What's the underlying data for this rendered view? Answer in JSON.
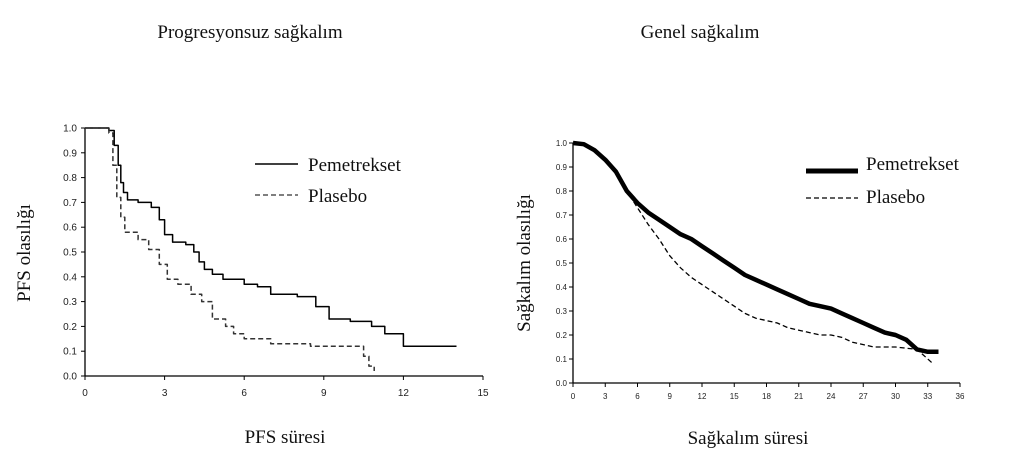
{
  "chart_data": [
    {
      "type": "line",
      "title": "Progresyonsuz sağkalım",
      "xlabel": "PFS süresi",
      "ylabel": "PFS olasılığı",
      "xlim": [
        0,
        15
      ],
      "ylim": [
        0,
        1
      ],
      "x_ticks": [
        "0",
        "3",
        "6",
        "9",
        "12",
        "15"
      ],
      "y_ticks": [
        "0.0",
        "0.1",
        "0.2",
        "0.3",
        "0.4",
        "0.5",
        "0.6",
        "0.7",
        "0.8",
        "0.9",
        "1.0"
      ],
      "x_tick_values": [
        0,
        3,
        6,
        9,
        12,
        15
      ],
      "y_tick_values": [
        0,
        0.1,
        0.2,
        0.3,
        0.4,
        0.5,
        0.6,
        0.7,
        0.8,
        0.9,
        1.0
      ],
      "grid": false,
      "legend_position": "top-right",
      "step": true,
      "series": [
        {
          "name": "Pemetrekset",
          "style": "solid",
          "points": [
            [
              0,
              1.0
            ],
            [
              0.9,
              0.99
            ],
            [
              1.1,
              0.93
            ],
            [
              1.25,
              0.85
            ],
            [
              1.35,
              0.78
            ],
            [
              1.45,
              0.74
            ],
            [
              1.6,
              0.71
            ],
            [
              2.0,
              0.7
            ],
            [
              2.5,
              0.68
            ],
            [
              2.8,
              0.63
            ],
            [
              3.0,
              0.57
            ],
            [
              3.3,
              0.54
            ],
            [
              3.8,
              0.53
            ],
            [
              4.1,
              0.5
            ],
            [
              4.3,
              0.46
            ],
            [
              4.5,
              0.43
            ],
            [
              4.8,
              0.41
            ],
            [
              5.2,
              0.39
            ],
            [
              6.0,
              0.37
            ],
            [
              6.5,
              0.36
            ],
            [
              7.0,
              0.33
            ],
            [
              8.0,
              0.32
            ],
            [
              8.7,
              0.28
            ],
            [
              9.2,
              0.23
            ],
            [
              10.0,
              0.22
            ],
            [
              10.8,
              0.2
            ],
            [
              11.3,
              0.17
            ],
            [
              12.0,
              0.12
            ],
            [
              14.0,
              0.12
            ]
          ]
        },
        {
          "name": "Plasebo",
          "style": "dashed",
          "points": [
            [
              0,
              1.0
            ],
            [
              0.9,
              0.98
            ],
            [
              1.05,
              0.85
            ],
            [
              1.2,
              0.72
            ],
            [
              1.35,
              0.64
            ],
            [
              1.5,
              0.58
            ],
            [
              2.0,
              0.55
            ],
            [
              2.4,
              0.51
            ],
            [
              2.8,
              0.45
            ],
            [
              3.1,
              0.39
            ],
            [
              3.5,
              0.37
            ],
            [
              4.0,
              0.33
            ],
            [
              4.4,
              0.3
            ],
            [
              4.8,
              0.23
            ],
            [
              5.3,
              0.2
            ],
            [
              5.6,
              0.17
            ],
            [
              6.0,
              0.15
            ],
            [
              7.0,
              0.13
            ],
            [
              8.5,
              0.12
            ],
            [
              10.2,
              0.12
            ],
            [
              10.5,
              0.08
            ],
            [
              10.7,
              0.04
            ],
            [
              10.9,
              0.02
            ]
          ]
        }
      ]
    },
    {
      "type": "line",
      "title": "Genel sağkalım",
      "xlabel": "Sağkalım süresi",
      "ylabel": "Sağkalım olasılığı",
      "xlim": [
        0,
        36
      ],
      "ylim": [
        0,
        1
      ],
      "x_ticks": [
        "0",
        "3",
        "6",
        "9",
        "12",
        "15",
        "18",
        "21",
        "24",
        "27",
        "30",
        "33",
        "36"
      ],
      "y_ticks": [
        "0.0",
        "0.1",
        "0.2",
        "0.3",
        "0.4",
        "0.5",
        "0.6",
        "0.7",
        "0.8",
        "0.9",
        "1.0"
      ],
      "x_tick_values": [
        0,
        3,
        6,
        9,
        12,
        15,
        18,
        21,
        24,
        27,
        30,
        33,
        36
      ],
      "y_tick_values": [
        0,
        0.1,
        0.2,
        0.3,
        0.4,
        0.5,
        0.6,
        0.7,
        0.8,
        0.9,
        1.0
      ],
      "grid": false,
      "legend_position": "top-right",
      "step": false,
      "series": [
        {
          "name": "Pemetrekset",
          "style": "thick",
          "points": [
            [
              0,
              1.0
            ],
            [
              1,
              0.995
            ],
            [
              2,
              0.97
            ],
            [
              3,
              0.93
            ],
            [
              4,
              0.88
            ],
            [
              5,
              0.8
            ],
            [
              6,
              0.75
            ],
            [
              7,
              0.71
            ],
            [
              8,
              0.68
            ],
            [
              9,
              0.65
            ],
            [
              10,
              0.62
            ],
            [
              11,
              0.6
            ],
            [
              12,
              0.57
            ],
            [
              13,
              0.54
            ],
            [
              14,
              0.51
            ],
            [
              15,
              0.48
            ],
            [
              16,
              0.45
            ],
            [
              17,
              0.43
            ],
            [
              18,
              0.41
            ],
            [
              19,
              0.39
            ],
            [
              20,
              0.37
            ],
            [
              21,
              0.35
            ],
            [
              22,
              0.33
            ],
            [
              23,
              0.32
            ],
            [
              24,
              0.31
            ],
            [
              25,
              0.29
            ],
            [
              26,
              0.27
            ],
            [
              27,
              0.25
            ],
            [
              28,
              0.23
            ],
            [
              29,
              0.21
            ],
            [
              30,
              0.2
            ],
            [
              31,
              0.18
            ],
            [
              32,
              0.14
            ],
            [
              33,
              0.13
            ],
            [
              34,
              0.13
            ]
          ]
        },
        {
          "name": "Plasebo",
          "style": "dashed",
          "points": [
            [
              0,
              1.0
            ],
            [
              1,
              0.99
            ],
            [
              2,
              0.97
            ],
            [
              3,
              0.93
            ],
            [
              4,
              0.87
            ],
            [
              5,
              0.8
            ],
            [
              6,
              0.73
            ],
            [
              7,
              0.66
            ],
            [
              8,
              0.6
            ],
            [
              9,
              0.53
            ],
            [
              10,
              0.48
            ],
            [
              11,
              0.44
            ],
            [
              12,
              0.41
            ],
            [
              13,
              0.38
            ],
            [
              14,
              0.35
            ],
            [
              15,
              0.32
            ],
            [
              16,
              0.29
            ],
            [
              17,
              0.27
            ],
            [
              18,
              0.26
            ],
            [
              19,
              0.25
            ],
            [
              20,
              0.23
            ],
            [
              21,
              0.22
            ],
            [
              22,
              0.21
            ],
            [
              23,
              0.2
            ],
            [
              24,
              0.2
            ],
            [
              25,
              0.19
            ],
            [
              26,
              0.17
            ],
            [
              27,
              0.16
            ],
            [
              28,
              0.15
            ],
            [
              30,
              0.15
            ],
            [
              32,
              0.14
            ],
            [
              33,
              0.1
            ],
            [
              33.5,
              0.08
            ]
          ]
        }
      ]
    }
  ]
}
